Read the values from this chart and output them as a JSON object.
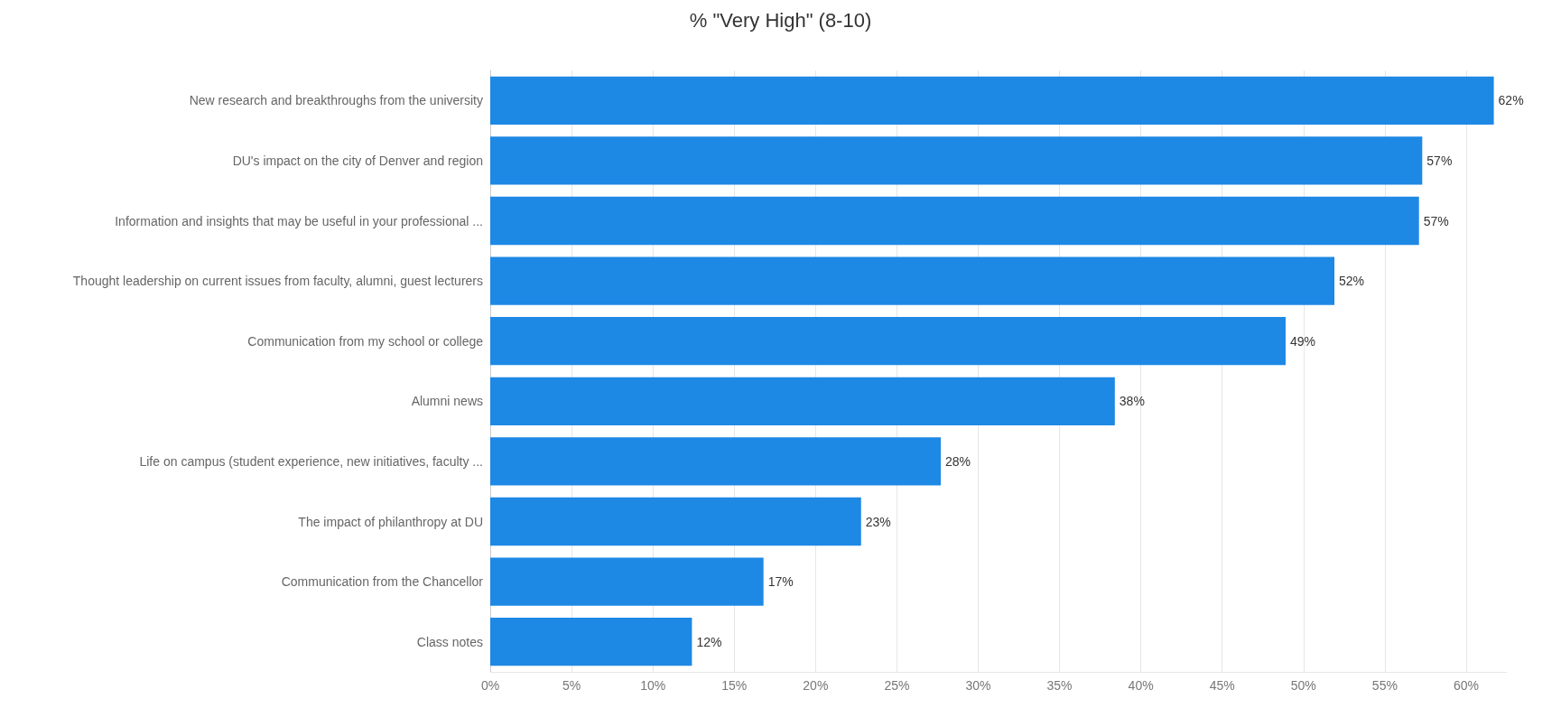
{
  "chart_data": {
    "type": "bar",
    "orientation": "horizontal",
    "title": "% \"Very High\" (8-10)",
    "categories": [
      "New research and breakthroughs from the university",
      "DU's impact on the city of Denver and region",
      "Information and insights that may be useful in your professional ...",
      "Thought leadership on current issues from faculty, alumni, guest lecturers",
      "Communication from my school or college",
      "Alumni news",
      "Life on campus (student experience, new initiatives, faculty ...",
      "The impact of philanthropy at DU",
      "Communication from the Chancellor",
      "Class notes"
    ],
    "values": [
      61.7,
      57.3,
      57.1,
      51.9,
      48.9,
      38.4,
      27.7,
      22.8,
      16.8,
      12.4
    ],
    "value_labels": [
      "62%",
      "57%",
      "57%",
      "52%",
      "49%",
      "38%",
      "28%",
      "23%",
      "17%",
      "12%"
    ],
    "color": "#1e88e5",
    "xlim": [
      0,
      62.5
    ],
    "xticks": [
      {
        "value": 0,
        "label": "0%"
      },
      {
        "value": 5,
        "label": "5%"
      },
      {
        "value": 10,
        "label": "10%"
      },
      {
        "value": 15,
        "label": "15%"
      },
      {
        "value": 20,
        "label": "20%"
      },
      {
        "value": 25,
        "label": "25%"
      },
      {
        "value": 30,
        "label": "30%"
      },
      {
        "value": 35,
        "label": "35%"
      },
      {
        "value": 40,
        "label": "40%"
      },
      {
        "value": 45,
        "label": "45%"
      },
      {
        "value": 50,
        "label": "50%"
      },
      {
        "value": 55,
        "label": "55%"
      },
      {
        "value": 60,
        "label": "60%"
      }
    ],
    "grid": "x"
  }
}
